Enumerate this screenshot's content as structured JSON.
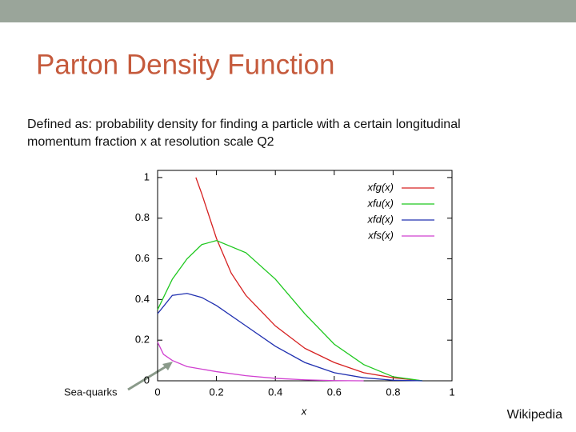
{
  "slide": {
    "title": "Parton Density Function",
    "body": [
      "Defined as: probability density for finding a particle with a certain longitudinal",
      "momentum fraction x at resolution scale Q2"
    ],
    "annotation": "Sea-quarks",
    "source": "Wikipedia"
  },
  "chart_data": {
    "type": "line",
    "xlabel": "x",
    "xlim": [
      0,
      1
    ],
    "ylim": [
      0,
      1.035
    ],
    "xticks": [
      0,
      0.2,
      0.4,
      0.6,
      0.8,
      1
    ],
    "yticks": [
      0,
      0.2,
      0.4,
      0.6,
      0.8,
      1
    ],
    "legend": "upper right",
    "series": [
      {
        "name": "xfg(x)",
        "color": "#d62020",
        "x": [
          0.13,
          0.15,
          0.2,
          0.25,
          0.3,
          0.4,
          0.5,
          0.6,
          0.7,
          0.8,
          0.9
        ],
        "values": [
          1.0,
          0.92,
          0.7,
          0.53,
          0.42,
          0.27,
          0.16,
          0.09,
          0.04,
          0.015,
          0
        ]
      },
      {
        "name": "xfu(x)",
        "color": "#1fc81f",
        "x": [
          0,
          0.05,
          0.1,
          0.15,
          0.2,
          0.3,
          0.4,
          0.5,
          0.6,
          0.7,
          0.8,
          0.9
        ],
        "values": [
          0.35,
          0.5,
          0.6,
          0.67,
          0.69,
          0.63,
          0.5,
          0.33,
          0.18,
          0.08,
          0.02,
          0
        ]
      },
      {
        "name": "xfd(x)",
        "color": "#2030b0",
        "x": [
          0,
          0.05,
          0.1,
          0.15,
          0.2,
          0.3,
          0.4,
          0.5,
          0.6,
          0.7,
          0.8,
          0.9
        ],
        "values": [
          0.33,
          0.42,
          0.43,
          0.41,
          0.37,
          0.27,
          0.17,
          0.09,
          0.04,
          0.015,
          0.003,
          0
        ]
      },
      {
        "name": "xfs(x)",
        "color": "#d040d0",
        "x": [
          0,
          0.02,
          0.05,
          0.1,
          0.2,
          0.3,
          0.4,
          0.5,
          0.6,
          0.7
        ],
        "values": [
          0.19,
          0.13,
          0.1,
          0.07,
          0.045,
          0.025,
          0.012,
          0.005,
          0.001,
          0
        ]
      }
    ]
  }
}
